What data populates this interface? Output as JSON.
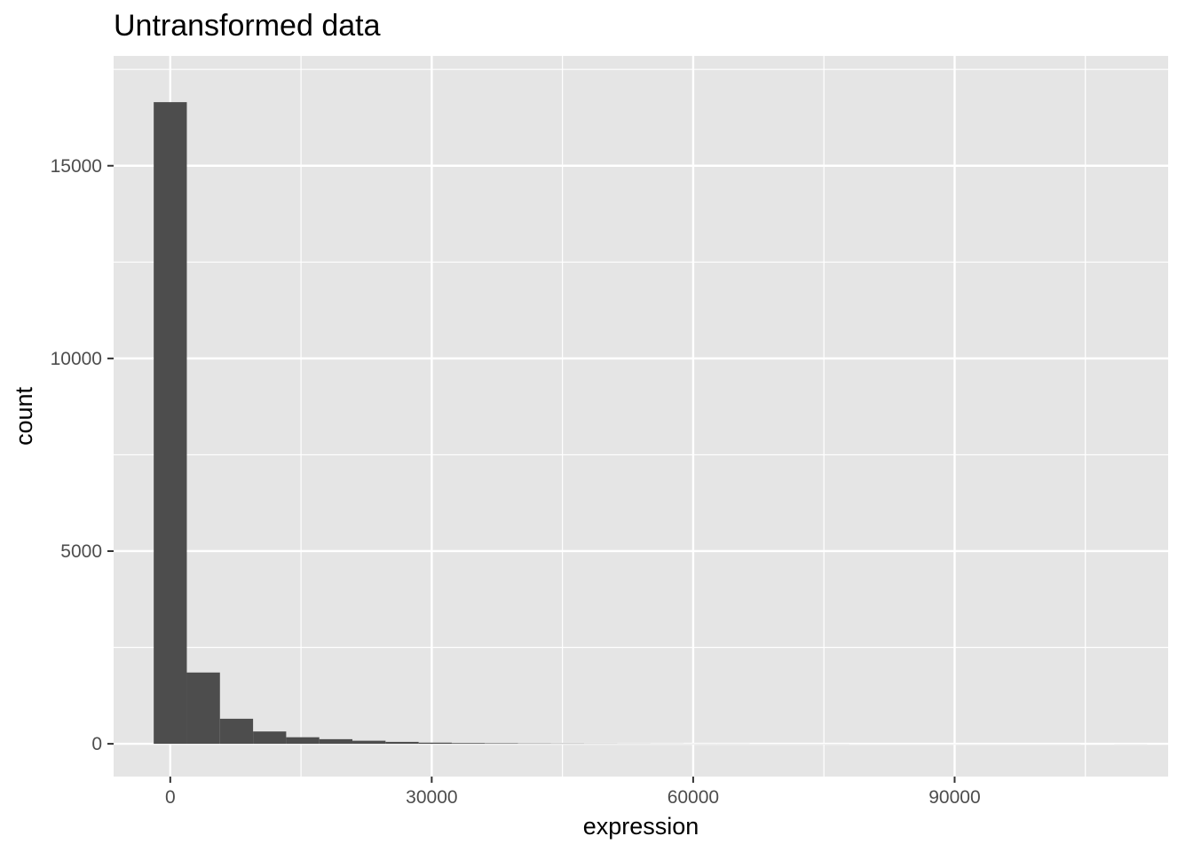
{
  "chart_data": {
    "type": "bar",
    "title": "Untransformed data",
    "xlabel": "expression",
    "ylabel": "count",
    "xlim": [
      -6500,
      114500
    ],
    "ylim": [
      -850,
      17850
    ],
    "x_ticks": [
      0,
      30000,
      60000,
      90000
    ],
    "y_ticks": [
      0,
      5000,
      10000,
      15000
    ],
    "x_minor_ticks": [
      15000,
      45000,
      75000,
      105000
    ],
    "y_minor_ticks": [
      2500,
      7500,
      12500,
      17500
    ],
    "bin_width": 3800,
    "bin_start": -1900,
    "values": [
      16650,
      1850,
      650,
      320,
      170,
      120,
      80,
      50,
      30,
      20,
      15,
      10,
      8,
      6,
      5,
      4,
      3,
      3,
      2,
      2,
      2,
      1,
      1,
      1,
      1,
      1,
      1,
      1,
      0,
      1
    ],
    "colors": {
      "panel": "#e5e5e5",
      "grid": "#ffffff",
      "bar": "#4d4d4d",
      "tick": "#333333"
    }
  }
}
